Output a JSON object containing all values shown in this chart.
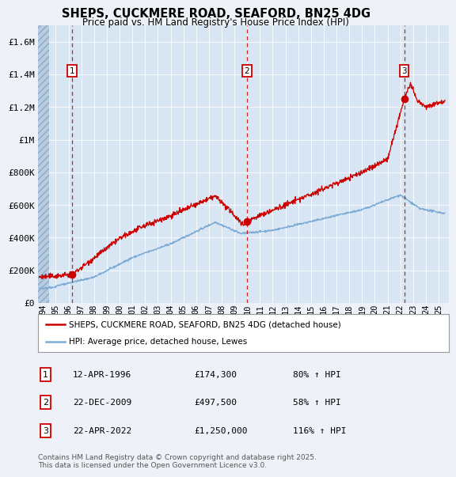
{
  "title": "SHEPS, CUCKMERE ROAD, SEAFORD, BN25 4DG",
  "subtitle": "Price paid vs. HM Land Registry's House Price Index (HPI)",
  "bg_color": "#eef2f8",
  "plot_bg_color": "#d8e5f2",
  "red_line_color": "#cc0000",
  "blue_line_color": "#7baad4",
  "sale_marker_color": "#cc0000",
  "dashed_line_color": "#cc0000",
  "ylim": [
    0,
    1700000
  ],
  "yticks": [
    0,
    200000,
    400000,
    600000,
    800000,
    1000000,
    1200000,
    1400000,
    1600000
  ],
  "ytick_labels": [
    "£0",
    "£200K",
    "£400K",
    "£600K",
    "£800K",
    "£1M",
    "£1.2M",
    "£1.4M",
    "£1.6M"
  ],
  "xmin": 1993.6,
  "xmax": 2025.8,
  "sales": [
    {
      "num": 1,
      "year": 1996.28,
      "price": 174300,
      "date": "12-APR-1996",
      "pct": "80%",
      "dir": "↑"
    },
    {
      "num": 2,
      "year": 2009.97,
      "price": 497500,
      "date": "22-DEC-2009",
      "pct": "58%",
      "dir": "↑"
    },
    {
      "num": 3,
      "year": 2022.3,
      "price": 1250000,
      "date": "22-APR-2022",
      "pct": "116%",
      "dir": "↑"
    }
  ],
  "legend_label_red": "SHEPS, CUCKMERE ROAD, SEAFORD, BN25 4DG (detached house)",
  "legend_label_blue": "HPI: Average price, detached house, Lewes",
  "footnote": "Contains HM Land Registry data © Crown copyright and database right 2025.\nThis data is licensed under the Open Government Licence v3.0."
}
